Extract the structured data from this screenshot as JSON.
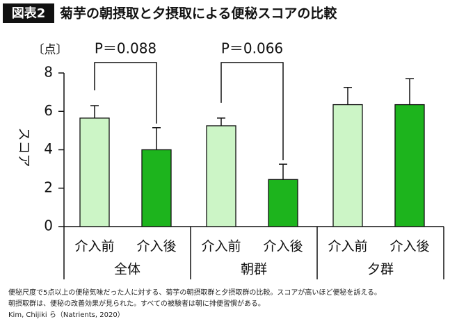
{
  "chart_data": {
    "type": "bar",
    "badge": "図表2",
    "title": "菊芋の朝摂取と夕摂取による便秘スコアの比較",
    "y_label": "スコア",
    "y_unit": "〔点〕",
    "categories": [
      "全体",
      "朝群",
      "夕群"
    ],
    "series": [
      {
        "name": "介入前",
        "color": "#ccf5c6",
        "values": [
          5.65,
          5.25,
          6.35
        ],
        "errors": [
          0.65,
          0.4,
          0.9
        ]
      },
      {
        "name": "介入後",
        "color": "#1db41d",
        "values": [
          4.0,
          2.45,
          6.35
        ],
        "errors": [
          1.15,
          0.8,
          1.35
        ]
      }
    ],
    "ylim": [
      0,
      8
    ],
    "yticks": [
      0,
      2,
      4,
      6,
      8
    ],
    "annotations": [
      {
        "text": "P＝0.088",
        "category": 0
      },
      {
        "text": "P＝0.066",
        "category": 1
      }
    ],
    "notes": [
      "便秘尺度で5点以上の便秘気味だった人に対する、菊芋の朝摂取群と夕摂取群の比較。スコアが高いほど便秘を訴える。",
      "朝摂取群は、便秘の改善効果が見られた。すべての被験者は朝に排便習慣がある。",
      "Kim, Chijiki ら（Natrients, 2020）"
    ]
  }
}
